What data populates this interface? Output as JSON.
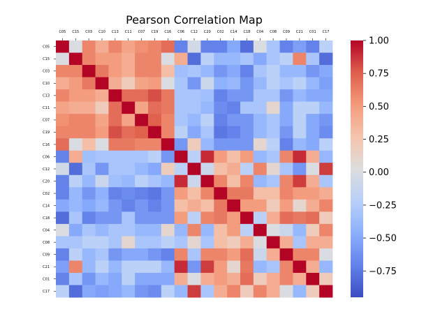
{
  "chart_data": {
    "type": "heatmap",
    "title": "Pearson Correlation Map",
    "labels": [
      "C05",
      "C15",
      "C03",
      "C10",
      "C13",
      "C11",
      "C07",
      "C19",
      "C16",
      "C06",
      "C12",
      "C20",
      "C02",
      "C14",
      "C18",
      "C04",
      "C08",
      "C09",
      "C21",
      "C01",
      "C17"
    ],
    "colorbar": {
      "min": -0.95,
      "max": 1.0,
      "ticks": [
        1.0,
        0.75,
        0.5,
        0.25,
        0.0,
        -0.25,
        -0.5,
        -0.75
      ],
      "tick_labels": [
        "1.00",
        "0.75",
        "0.50",
        "0.25",
        "0.00",
        "−0.25",
        "−0.50",
        "−0.75"
      ]
    },
    "colormap": "coolwarm",
    "matrix": [
      [
        1.0,
        0.0,
        0.6,
        0.4,
        0.6,
        0.45,
        0.55,
        0.6,
        0.7,
        -0.7,
        -0.05,
        -0.7,
        -0.7,
        -0.5,
        -0.8,
        0.0,
        -0.3,
        -0.7,
        -0.55,
        -0.7,
        -0.2
      ],
      [
        0.0,
        1.0,
        0.6,
        0.5,
        0.5,
        0.4,
        0.6,
        0.6,
        0.0,
        0.4,
        -0.8,
        -0.2,
        -0.4,
        -0.4,
        -0.3,
        -0.5,
        -0.3,
        -0.2,
        0.6,
        -0.3,
        -0.8
      ],
      [
        0.6,
        0.6,
        1.0,
        0.65,
        0.5,
        0.4,
        0.6,
        0.6,
        0.3,
        -0.35,
        -0.3,
        -0.4,
        -0.6,
        -0.5,
        -0.7,
        -0.3,
        -0.2,
        -0.4,
        -0.4,
        -0.6,
        -0.5
      ],
      [
        0.4,
        0.5,
        0.65,
        1.0,
        0.4,
        0.2,
        0.45,
        0.5,
        0.0,
        -0.3,
        -0.6,
        -0.1,
        -0.45,
        -0.4,
        -0.6,
        -0.4,
        -0.2,
        -0.3,
        -0.2,
        -0.4,
        -0.55
      ],
      [
        0.6,
        0.5,
        0.5,
        0.4,
        1.0,
        0.7,
        0.7,
        0.8,
        0.65,
        -0.3,
        -0.3,
        -0.35,
        -0.7,
        -0.6,
        -0.6,
        -0.3,
        -0.3,
        -0.6,
        -0.4,
        -0.5,
        -0.5
      ],
      [
        0.45,
        0.4,
        0.4,
        0.2,
        0.7,
        1.0,
        0.45,
        0.7,
        0.65,
        -0.3,
        -0.3,
        -0.4,
        -0.65,
        -0.7,
        -0.3,
        -0.3,
        0.1,
        -0.5,
        -0.2,
        -0.2,
        -0.4
      ],
      [
        0.55,
        0.6,
        0.6,
        0.45,
        0.7,
        0.45,
        1.0,
        0.75,
        0.6,
        -0.3,
        -0.4,
        -0.2,
        -0.7,
        -0.6,
        -0.6,
        -0.4,
        -0.3,
        -0.5,
        -0.2,
        -0.5,
        -0.6
      ],
      [
        0.6,
        0.6,
        0.6,
        0.5,
        0.8,
        0.7,
        0.75,
        1.0,
        0.6,
        -0.2,
        -0.5,
        -0.3,
        -0.75,
        -0.7,
        -0.6,
        -0.4,
        -0.3,
        -0.6,
        -0.2,
        -0.5,
        -0.65
      ],
      [
        0.7,
        0.0,
        0.3,
        0.0,
        0.65,
        0.65,
        0.6,
        0.6,
        1.0,
        -0.6,
        0.2,
        -0.4,
        -0.6,
        -0.6,
        -0.6,
        0.1,
        -0.2,
        -0.7,
        -0.4,
        -0.5,
        -0.2
      ],
      [
        -0.7,
        0.4,
        -0.35,
        -0.3,
        -0.3,
        -0.3,
        -0.3,
        -0.2,
        -0.6,
        1.0,
        -0.2,
        0.9,
        0.5,
        0.3,
        0.5,
        -0.4,
        -0.3,
        0.6,
        0.9,
        0.4,
        -0.4
      ],
      [
        -0.05,
        -0.8,
        -0.3,
        -0.6,
        -0.3,
        -0.3,
        -0.4,
        -0.5,
        0.2,
        -0.2,
        1.0,
        -0.1,
        0.3,
        0.4,
        -0.2,
        0.6,
        0.1,
        -0.3,
        -0.6,
        0.0,
        0.85
      ],
      [
        -0.7,
        -0.2,
        -0.4,
        -0.1,
        -0.35,
        -0.4,
        -0.2,
        -0.3,
        -0.4,
        0.9,
        -0.1,
        1.0,
        0.6,
        0.3,
        0.6,
        -0.4,
        -0.3,
        0.6,
        0.85,
        0.4,
        -0.3
      ],
      [
        -0.7,
        -0.4,
        -0.6,
        -0.45,
        -0.7,
        -0.65,
        -0.7,
        -0.75,
        -0.6,
        0.5,
        0.3,
        0.6,
        1.0,
        0.65,
        0.65,
        0.3,
        0.3,
        0.6,
        0.5,
        0.5,
        0.4
      ],
      [
        -0.5,
        -0.4,
        -0.5,
        -0.4,
        -0.6,
        -0.7,
        -0.6,
        -0.7,
        -0.6,
        0.3,
        0.4,
        0.3,
        0.65,
        1.0,
        0.5,
        0.5,
        0.2,
        0.5,
        0.1,
        0.4,
        0.6
      ],
      [
        -0.8,
        -0.3,
        -0.7,
        -0.6,
        -0.6,
        -0.3,
        -0.6,
        -0.6,
        -0.6,
        0.5,
        -0.2,
        0.6,
        0.65,
        0.5,
        1.0,
        -0.2,
        0.4,
        0.7,
        0.65,
        0.7,
        0.2
      ],
      [
        0.0,
        -0.5,
        -0.3,
        -0.4,
        -0.3,
        -0.3,
        -0.4,
        -0.4,
        0.1,
        -0.4,
        0.6,
        -0.4,
        0.3,
        0.5,
        -0.2,
        1.0,
        0.0,
        -0.1,
        -0.4,
        0.2,
        0.6
      ],
      [
        -0.3,
        -0.3,
        -0.2,
        -0.2,
        -0.3,
        0.1,
        -0.3,
        -0.3,
        -0.2,
        -0.3,
        0.1,
        -0.3,
        0.3,
        0.2,
        0.4,
        0.0,
        1.0,
        0.4,
        -0.3,
        0.4,
        0.4
      ],
      [
        -0.7,
        -0.2,
        -0.4,
        -0.3,
        -0.6,
        -0.5,
        -0.5,
        -0.6,
        -0.7,
        0.6,
        -0.3,
        0.6,
        0.6,
        0.5,
        0.7,
        -0.1,
        0.4,
        1.0,
        0.6,
        0.6,
        0.0
      ],
      [
        -0.55,
        0.6,
        -0.4,
        -0.2,
        -0.4,
        -0.2,
        -0.2,
        -0.2,
        -0.4,
        0.9,
        -0.6,
        0.85,
        0.5,
        0.1,
        0.65,
        -0.4,
        -0.3,
        0.6,
        1.0,
        0.4,
        -0.4
      ],
      [
        -0.7,
        -0.3,
        -0.6,
        -0.4,
        -0.5,
        -0.2,
        -0.5,
        -0.5,
        -0.5,
        0.4,
        0.0,
        0.4,
        0.5,
        0.4,
        0.7,
        0.2,
        0.4,
        0.6,
        0.4,
        1.0,
        0.2
      ],
      [
        -0.2,
        -0.8,
        -0.5,
        -0.55,
        -0.5,
        -0.4,
        -0.6,
        -0.65,
        -0.2,
        -0.4,
        0.85,
        -0.3,
        0.4,
        0.6,
        0.2,
        0.6,
        0.4,
        0.0,
        -0.4,
        0.2,
        1.0
      ]
    ]
  }
}
